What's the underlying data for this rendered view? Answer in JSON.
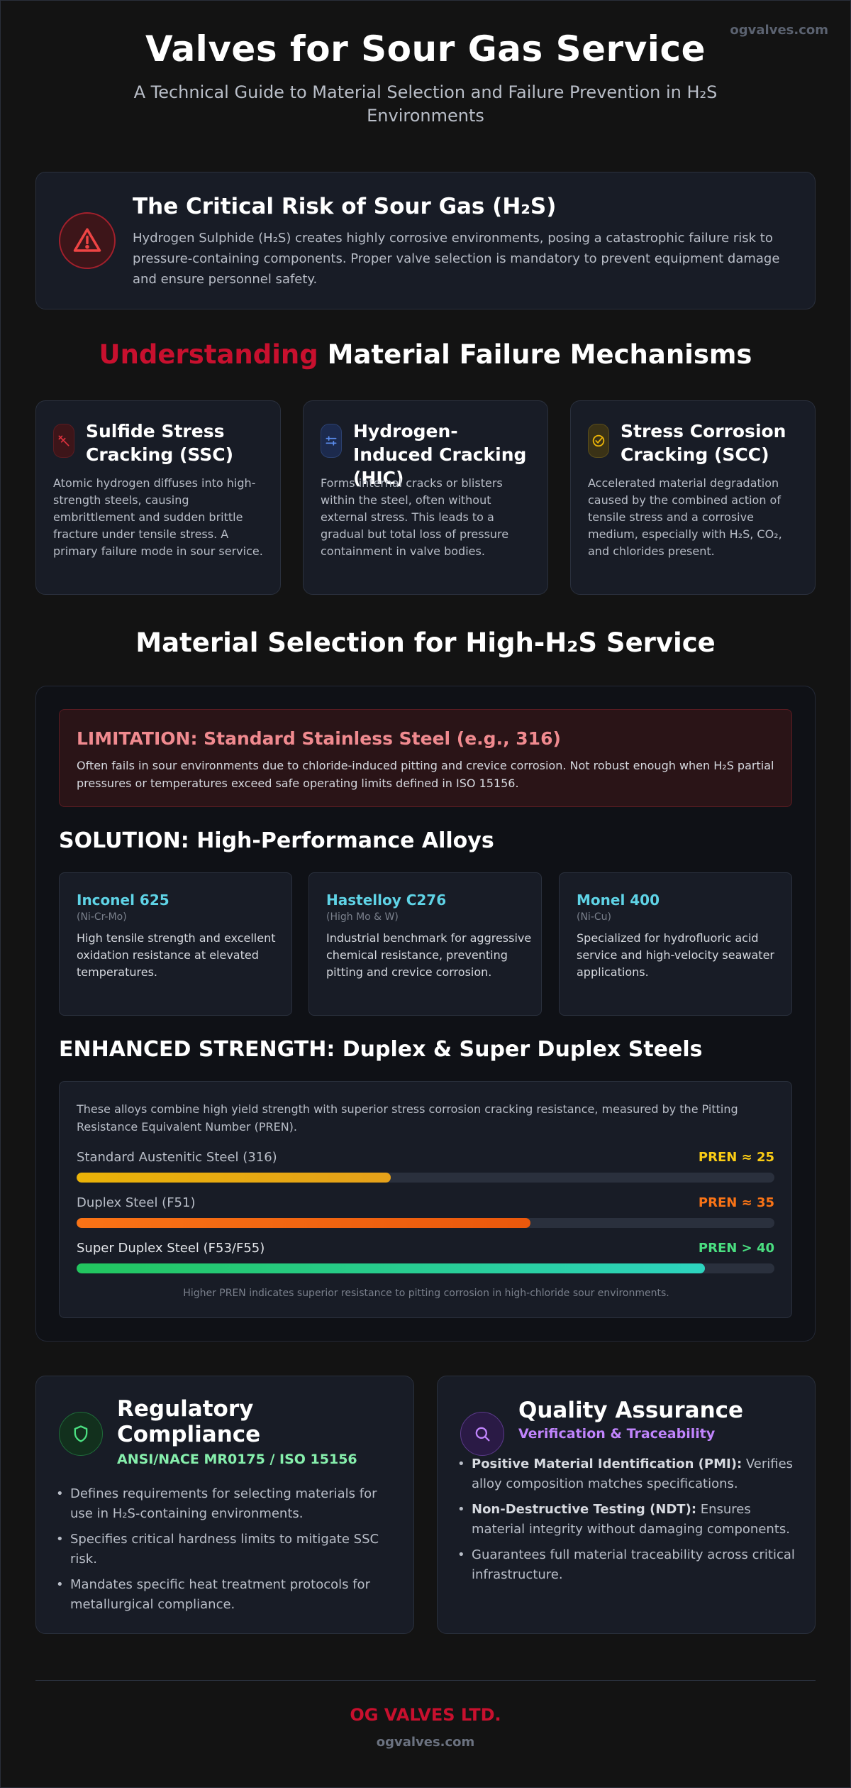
{
  "site_tag": "ogvalves.com",
  "hero": {
    "title": "Valves for Sour Gas Service",
    "subtitle": "A Technical Guide to Material Selection and Failure Prevention in H₂S Environments"
  },
  "risk": {
    "icon": "warning-triangle-icon",
    "title": "The Critical Risk of Sour Gas (H₂S)",
    "text": "Hydrogen Sulphide (H₂S) creates highly corrosive environments, posing a catastrophic failure risk to pressure-containing components. Proper valve selection is mandatory to prevent equipment damage and ensure personnel safety."
  },
  "mechanisms": {
    "title_accent": "Understanding",
    "title_rest": " Material Failure Mechanisms",
    "cards": [
      {
        "icon": "crack-icon",
        "title": "Sulfide Stress Cracking (SSC)",
        "text": "Atomic hydrogen diffuses into high-strength steels, causing embrittlement and sudden brittle fracture under tensile stress. A primary failure mode in sour service.",
        "color": "#e0323f",
        "bg": "#3d1519"
      },
      {
        "icon": "blister-icon",
        "title": "Hydrogen-Induced Cracking (HIC)",
        "text": "Forms internal cracks or blisters within the steel, often without external stress. This leads to a gradual but total loss of pressure containment in valve bodies.",
        "color": "#5b8def",
        "bg": "#1c2a4d"
      },
      {
        "icon": "check-circle-icon",
        "title": "Stress Corrosion Cracking (SCC)",
        "text": "Accelerated material degradation caused by the combined action of tensile stress and a corrosive medium, especially with H₂S, CO₂, and chlorides present.",
        "color": "#eab308",
        "bg": "#3a3216"
      }
    ]
  },
  "materials": {
    "title": "Material Selection for High-H₂S Service",
    "limitation": {
      "title": "LIMITATION: Standard Stainless Steel (e.g., 316)",
      "text": "Often fails in sour environments due to chloride-induced pitting and crevice corrosion. Not robust enough when H₂S partial pressures or temperatures exceed safe operating limits defined in ISO 15156."
    },
    "solution_title": "SOLUTION: High-Performance Alloys",
    "alloys": [
      {
        "name": "Inconel 625",
        "composition": "(Ni-Cr-Mo)",
        "text": "High tensile strength and excellent oxidation resistance at elevated temperatures."
      },
      {
        "name": "Hastelloy C276",
        "composition": "(High Mo & W)",
        "text": "Industrial benchmark for aggressive chemical resistance, preventing pitting and crevice corrosion."
      },
      {
        "name": "Monel 400",
        "composition": "(Ni-Cu)",
        "text": "Specialized for hydrofluoric acid service and high-velocity seawater applications."
      }
    ],
    "enhanced_title": "ENHANCED STRENGTH: Duplex & Super Duplex Steels",
    "pren": {
      "intro": "These alloys combine high yield strength with superior stress corrosion cracking resistance, measured by the Pitting Resistance Equivalent Number (PREN).",
      "bars": [
        {
          "label": "Standard Austenitic Steel (316)",
          "value": "PREN ≈ 25",
          "fill_percent": 45,
          "value_color": "#facc15",
          "fill": "linear-gradient(90deg,#eab308,#e5a11a)"
        },
        {
          "label": "Duplex Steel (F51)",
          "value": "PREN ≈ 35",
          "fill_percent": 65,
          "value_color": "#f97316",
          "fill": "linear-gradient(90deg,#f97316,#ea580c)"
        },
        {
          "label": "Super Duplex Steel (F53/F55)",
          "value": "PREN > 40",
          "fill_percent": 90,
          "value_color": "#4ade80",
          "fill": "linear-gradient(90deg,#22c55e,#2dd4bf)"
        }
      ],
      "note": "Higher PREN indicates superior resistance to pitting corrosion in high-chloride sour environments."
    }
  },
  "compliance": {
    "icon": "shield-icon",
    "title": "Regulatory Compliance",
    "tagline": "ANSI/NACE MR0175 / ISO 15156",
    "items": [
      "Defines requirements for selecting materials for use in H₂S-containing environments.",
      "Specifies critical hardness limits to mitigate SSC risk.",
      "Mandates specific heat treatment protocols for metallurgical compliance."
    ]
  },
  "quality": {
    "icon": "magnifier-icon",
    "title": "Quality Assurance",
    "tagline": "Verification & Traceability",
    "items": [
      {
        "bold": "Positive Material Identification (PMI):",
        "text": " Verifies alloy composition matches specifications."
      },
      {
        "bold": "Non-Destructive Testing (NDT):",
        "text": " Ensures material integrity without damaging components."
      },
      {
        "bold": "",
        "text": "Guarantees full material traceability across critical infrastructure."
      }
    ]
  },
  "footer": {
    "brand": "OG VALVES LTD.",
    "url": "ogvalves.com"
  }
}
